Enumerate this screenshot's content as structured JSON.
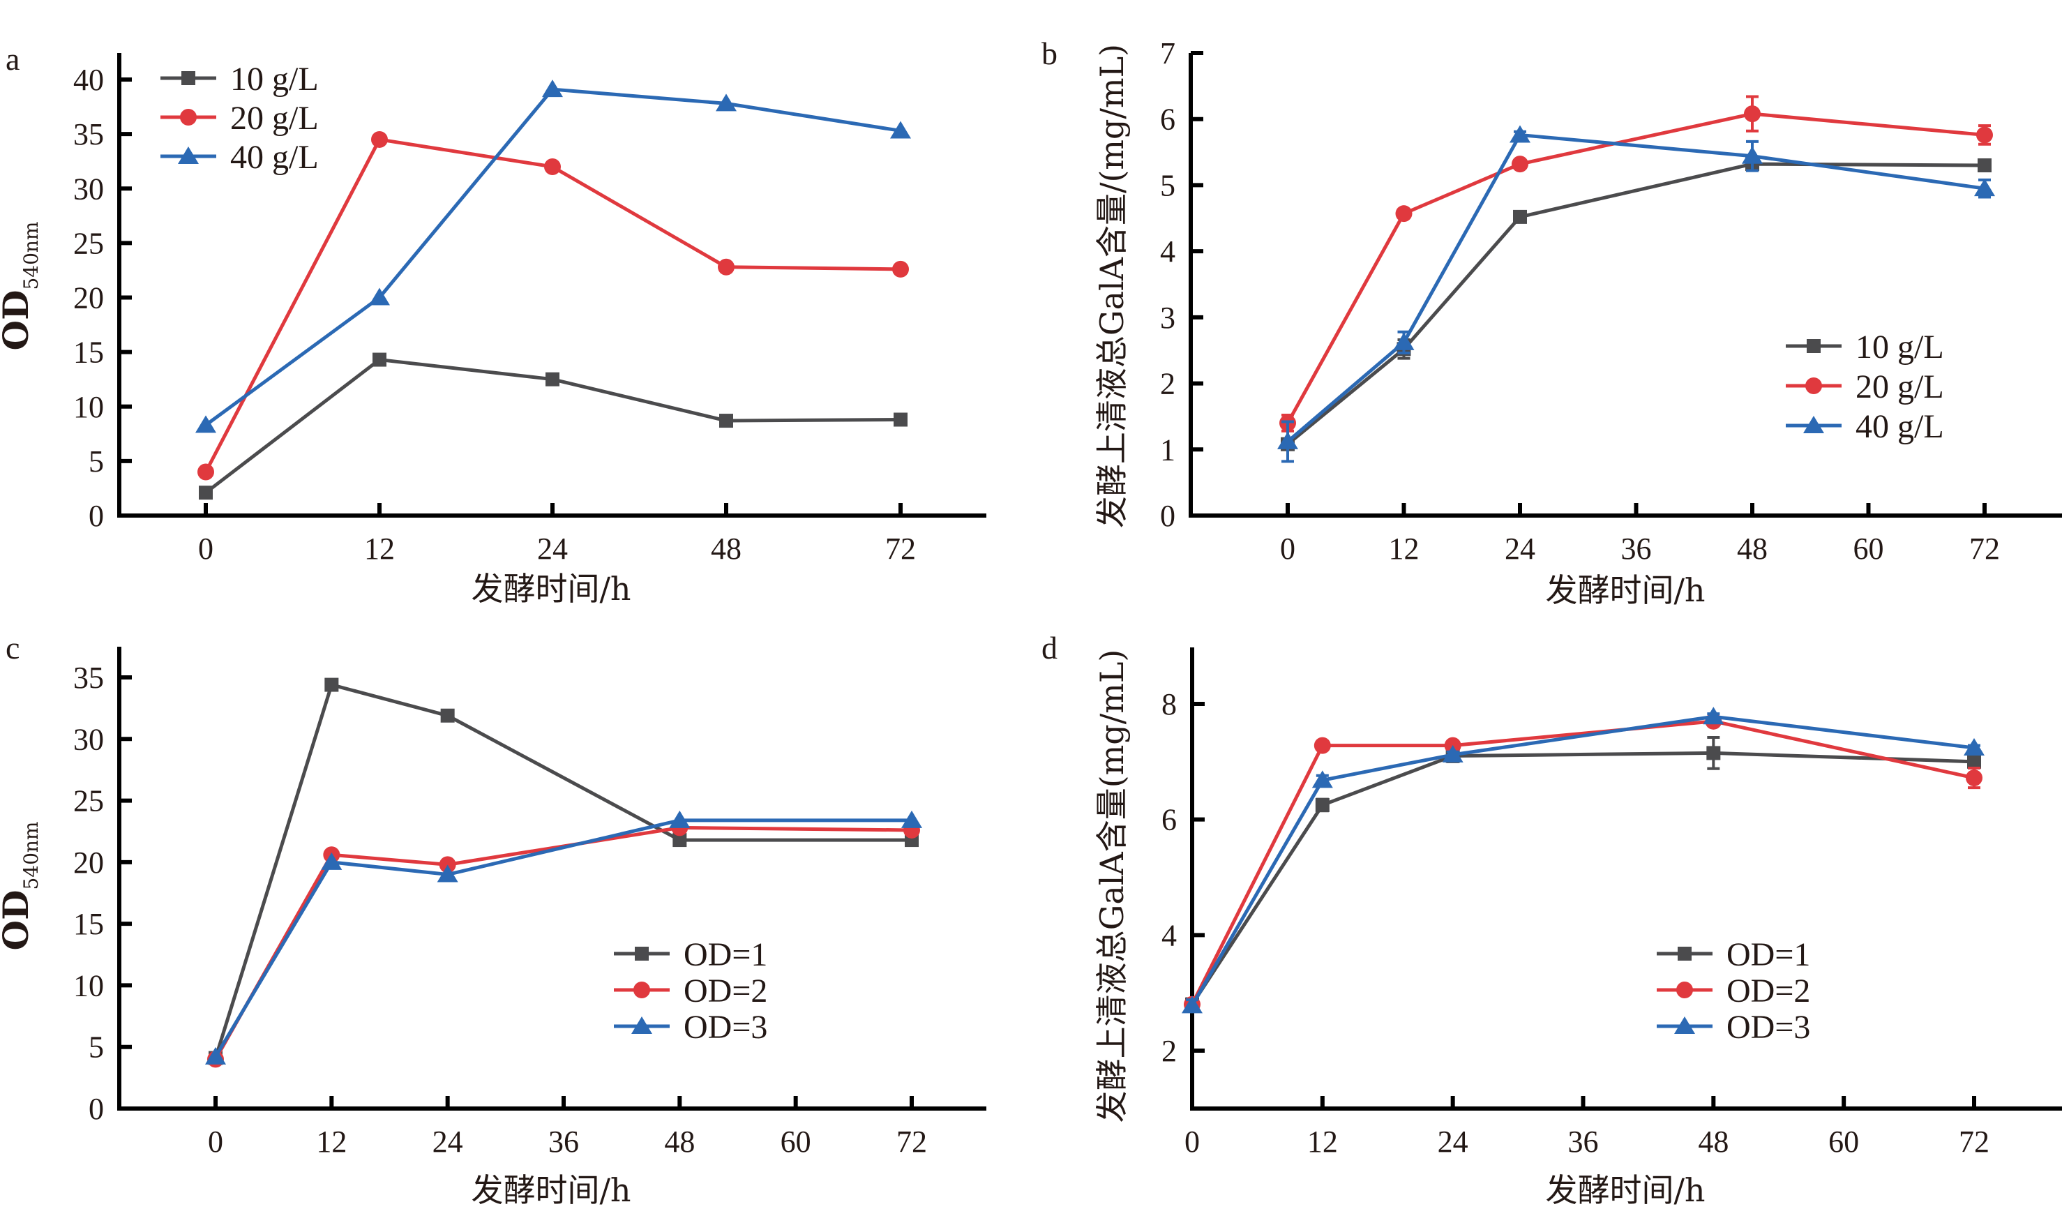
{
  "colors": {
    "gray": "#4b4b4d",
    "red": "#e0393e",
    "blue": "#2b69b4"
  },
  "chart_data": [
    {
      "panel": "a",
      "type": "line",
      "x_scale": "categorical",
      "categories": [
        "0",
        "12",
        "24",
        "48",
        "72"
      ],
      "xlabel": "发酵时间/h",
      "ylabel_main": "OD",
      "ylabel_sub": "540nm",
      "ylim": [
        0,
        42
      ],
      "yticks": [
        0,
        5,
        10,
        15,
        20,
        25,
        30,
        35,
        40
      ],
      "legend_position": "top-left",
      "grid": false,
      "series": [
        {
          "name": "10 g/L",
          "color": "gray",
          "marker": "square",
          "values": [
            2.1,
            14.3,
            12.5,
            8.7,
            8.8
          ]
        },
        {
          "name": "20 g/L",
          "color": "red",
          "marker": "circle",
          "values": [
            4.0,
            34.5,
            32.0,
            22.8,
            22.6
          ]
        },
        {
          "name": "40 g/L",
          "color": "blue",
          "marker": "triangle",
          "values": [
            8.3,
            20.0,
            39.1,
            37.8,
            35.3
          ]
        }
      ]
    },
    {
      "panel": "b",
      "type": "line",
      "x_scale": "linear",
      "x": [
        0,
        12,
        24,
        48,
        72
      ],
      "xticks": [
        0,
        12,
        24,
        36,
        48,
        60,
        72
      ],
      "xlim": [
        -10,
        80
      ],
      "xlabel": "发酵时间/h",
      "ylabel": "发酵上清液总GalA含量/(mg/mL)",
      "ylim": [
        0,
        7
      ],
      "yticks": [
        0,
        1,
        2,
        3,
        4,
        5,
        6,
        7
      ],
      "legend_position": "center-right",
      "grid": false,
      "series": [
        {
          "name": "10 g/L",
          "color": "gray",
          "marker": "square",
          "values": [
            1.08,
            2.52,
            4.52,
            5.32,
            5.3
          ],
          "errors": [
            0.05,
            0.14,
            0.08,
            0.07,
            0.02
          ]
        },
        {
          "name": "20 g/L",
          "color": "red",
          "marker": "circle",
          "values": [
            1.4,
            4.57,
            5.32,
            6.08,
            5.76
          ],
          "errors": [
            0.12,
            0.04,
            0.03,
            0.26,
            0.14
          ]
        },
        {
          "name": "40 g/L",
          "color": "blue",
          "marker": "triangle",
          "values": [
            1.12,
            2.62,
            5.76,
            5.44,
            4.95
          ],
          "errors": [
            0.3,
            0.16,
            0.05,
            0.22,
            0.13
          ]
        }
      ]
    },
    {
      "panel": "c",
      "type": "line",
      "x_scale": "linear",
      "x": [
        0,
        12,
        24,
        48,
        72
      ],
      "xticks": [
        0,
        12,
        24,
        36,
        48,
        60,
        72
      ],
      "xlim": [
        -10,
        80
      ],
      "xlabel": "发酵时间/h",
      "ylabel_main": "OD",
      "ylabel_sub": "540nm",
      "ylim": [
        0,
        37.5
      ],
      "yticks": [
        0,
        5,
        10,
        15,
        20,
        25,
        30,
        35
      ],
      "legend_position": "center-right",
      "grid": false,
      "series": [
        {
          "name": "OD=1",
          "color": "gray",
          "marker": "square",
          "values": [
            4.1,
            34.4,
            31.9,
            21.8,
            21.8
          ]
        },
        {
          "name": "OD=2",
          "color": "red",
          "marker": "circle",
          "values": [
            4.0,
            20.6,
            19.8,
            22.8,
            22.6
          ]
        },
        {
          "name": "OD=3",
          "color": "blue",
          "marker": "triangle",
          "values": [
            4.2,
            20.0,
            19.0,
            23.4,
            23.4
          ]
        }
      ]
    },
    {
      "panel": "d",
      "type": "line",
      "x_scale": "linear",
      "x": [
        0,
        12,
        24,
        48,
        72
      ],
      "xticks": [
        0,
        12,
        24,
        36,
        48,
        60,
        72
      ],
      "xlim": [
        0,
        80
      ],
      "xlabel": "发酵时间/h",
      "ylabel": "发酵上清液总GalA含量(mg/mL)",
      "ylim": [
        1,
        9
      ],
      "yticks": [
        2,
        4,
        6,
        8
      ],
      "legend_position": "center-right",
      "grid": false,
      "series": [
        {
          "name": "OD=1",
          "color": "gray",
          "marker": "square",
          "values": [
            2.8,
            6.25,
            7.1,
            7.15,
            7.0
          ],
          "errors": [
            0.1,
            0.1,
            0.1,
            0.27,
            0.05
          ]
        },
        {
          "name": "OD=2",
          "color": "red",
          "marker": "circle",
          "values": [
            2.8,
            7.28,
            7.28,
            7.7,
            6.72
          ],
          "errors": [
            0.05,
            0.04,
            0.04,
            0.05,
            0.17
          ]
        },
        {
          "name": "OD=3",
          "color": "blue",
          "marker": "triangle",
          "values": [
            2.78,
            6.68,
            7.12,
            7.78,
            7.24
          ],
          "errors": [
            0.1,
            0.08,
            0.05,
            0.05,
            0.04
          ]
        }
      ]
    }
  ]
}
